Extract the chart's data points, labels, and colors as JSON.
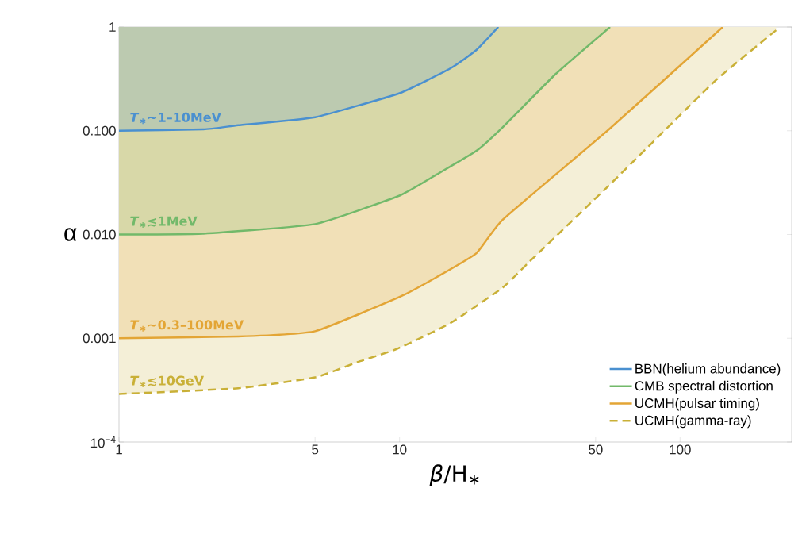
{
  "chart_data": {
    "type": "line",
    "xlabel": "*β*/H$_{∗}$",
    "ylabel": "α",
    "log": "xy",
    "xlim": [
      1,
      250
    ],
    "ylim": [
      0.0001,
      1
    ],
    "xticks": [
      1,
      5,
      10,
      50,
      100
    ],
    "yticks": [
      {
        "value": 0.0001,
        "label": "10$^{−4}$"
      },
      {
        "value": 0.001,
        "label": "0.001"
      },
      {
        "value": 0.01,
        "label": "0.010"
      },
      {
        "value": 0.1,
        "label": "0.100"
      },
      {
        "value": 1,
        "label": "1"
      }
    ],
    "grid": false,
    "legend": "bottom right",
    "marker": "none",
    "series": [
      {
        "name": "BBN(helium abundance)",
        "color": "#4a90d0",
        "line_style": "solid",
        "x": [
          1,
          2,
          2.66,
          5,
          10,
          15.2,
          18.8,
          22.5
        ],
        "values": [
          0.1,
          0.103,
          0.113,
          0.135,
          0.23,
          0.4,
          0.6,
          1
        ],
        "lower": [
          0.1,
          0.103,
          0.113,
          0.135,
          0.23,
          0.4,
          0.6,
          1
        ],
        "upper": [
          1,
          1,
          1,
          1,
          1,
          1,
          1,
          1
        ]
      },
      {
        "name": "CMB spectral distortion",
        "color": "#72b96a",
        "line_style": "solid",
        "x": [
          1,
          2,
          5,
          10,
          13.6,
          18.8,
          23.4,
          36.1,
          56.3
        ],
        "values": [
          0.01,
          0.0102,
          0.0126,
          0.0237,
          0.038,
          0.064,
          0.109,
          0.354,
          1
        ],
        "lower": [
          0.01,
          0.0102,
          0.0126,
          0.0237,
          0.038,
          0.064,
          0.109,
          0.354,
          1
        ],
        "upper": [
          1,
          1,
          1,
          1,
          1,
          1,
          1,
          1,
          1
        ]
      },
      {
        "name": "UCMH(pulsar timing)",
        "color": "#e3a535",
        "line_style": "solid",
        "x": [
          1,
          2.66,
          5,
          10,
          13.6,
          18.8,
          23.4,
          56,
          142
        ],
        "values": [
          0.001,
          0.00104,
          0.00117,
          0.0025,
          0.0039,
          0.0066,
          0.014,
          0.104,
          1
        ],
        "lower": [
          0.001,
          0.00104,
          0.00117,
          0.0025,
          0.0039,
          0.0066,
          0.014,
          0.104,
          1
        ],
        "upper": [
          1,
          1,
          1,
          1,
          1,
          1,
          1,
          1,
          1
        ]
      },
      {
        "name": "UCMH(gamma-ray)",
        "color": "#c9b037",
        "line_style": "dashed",
        "x": [
          1,
          2.66,
          5,
          7.1,
          9.8,
          15.2,
          23.4,
          29.1,
          56,
          133,
          220
        ],
        "values": [
          0.00029,
          0.00033,
          0.00042,
          0.00059,
          0.00079,
          0.0014,
          0.0031,
          0.0055,
          0.03,
          0.3,
          0.93
        ],
        "lower": [
          0.00029,
          0.00033,
          0.00042,
          0.00059,
          0.00079,
          0.0014,
          0.0031,
          0.0055,
          0.03,
          0.3,
          0.93
        ],
        "upper": [
          1,
          1,
          1,
          1,
          1,
          1,
          1,
          1,
          1,
          1,
          1
        ]
      }
    ],
    "annotations": [
      "*T*$_{∗}$∼1–10MeV",
      "*T*$_{∗}$≲1MeV",
      "*T*$_{∗}$∼0.3–100MeV",
      "*T*$_{∗}$≲10GeV"
    ]
  }
}
